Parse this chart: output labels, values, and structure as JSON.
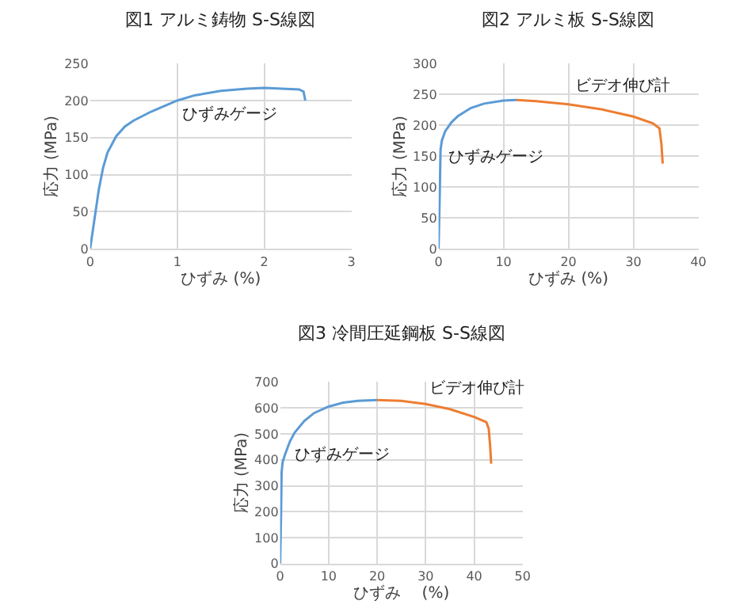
{
  "chart_data": [
    {
      "type": "line",
      "title": "図1 アルミ鋳物 S-S線図",
      "xlabel": "ひずみ (%)",
      "ylabel": "応力 (MPa)",
      "xlim": [
        0,
        3
      ],
      "xticks": [
        0,
        1,
        2,
        3
      ],
      "ylim": [
        0,
        250
      ],
      "yticks": [
        0,
        50,
        100,
        150,
        200,
        250
      ],
      "grid": true,
      "marker": "none",
      "line_style": "solid",
      "series": [
        {
          "name": "ひずみゲージ",
          "color": "#5b9bd5",
          "x": [
            0,
            0.05,
            0.1,
            0.15,
            0.2,
            0.3,
            0.4,
            0.5,
            0.7,
            1,
            1.2,
            1.5,
            1.8,
            2,
            2.2,
            2.4,
            2.45,
            2.47
          ],
          "values": [
            0,
            40,
            80,
            110,
            130,
            152,
            165,
            173,
            185,
            200,
            207,
            213,
            216,
            217,
            216,
            215,
            212,
            200
          ]
        }
      ]
    },
    {
      "type": "line",
      "title": "図2 アルミ板 S-S線図",
      "xlabel": "ひずみ (%)",
      "ylabel": "応力 (MPa)",
      "xlim": [
        0,
        40
      ],
      "xticks": [
        0,
        10,
        20,
        30,
        40
      ],
      "ylim": [
        0,
        300
      ],
      "yticks": [
        0,
        50,
        100,
        150,
        200,
        250,
        300
      ],
      "grid": true,
      "marker": "none",
      "line_style": "solid",
      "series": [
        {
          "name": "ひずみゲージ",
          "color": "#5b9bd5",
          "x": [
            0,
            0.2,
            0.3,
            0.5,
            1,
            2,
            3,
            5,
            7,
            10,
            12
          ],
          "values": [
            0,
            100,
            160,
            175,
            190,
            205,
            215,
            228,
            235,
            240,
            241
          ]
        },
        {
          "name": "ビデオ伸び計",
          "color": "#ed7d31",
          "x": [
            12,
            15,
            20,
            25,
            30,
            33,
            34,
            34.3,
            34.5
          ],
          "values": [
            241,
            239,
            234,
            226,
            214,
            203,
            195,
            170,
            138
          ]
        }
      ]
    },
    {
      "type": "line",
      "title": "図3 冷間圧延鋼板 S-S線図",
      "xlabel": "ひずみ　 (%)",
      "ylabel": "応力 (MPa)",
      "xlim": [
        0,
        50
      ],
      "xticks": [
        0,
        10,
        20,
        30,
        40,
        50
      ],
      "ylim": [
        0,
        700
      ],
      "yticks": [
        0,
        100,
        200,
        300,
        400,
        500,
        600,
        700
      ],
      "grid": true,
      "marker": "none",
      "line_style": "solid",
      "series": [
        {
          "name": "ひずみゲージ",
          "color": "#5b9bd5",
          "x": [
            0,
            0.2,
            0.3,
            0.5,
            1,
            2,
            3,
            5,
            7,
            10,
            13,
            16,
            20
          ],
          "values": [
            0,
            200,
            350,
            390,
            420,
            470,
            505,
            550,
            580,
            605,
            620,
            627,
            630
          ]
        },
        {
          "name": "ビデオ伸び計",
          "color": "#ed7d31",
          "x": [
            20,
            25,
            30,
            35,
            40,
            42.5,
            43,
            43.3,
            43.5
          ],
          "values": [
            630,
            627,
            615,
            595,
            565,
            545,
            520,
            450,
            385
          ]
        }
      ]
    }
  ]
}
